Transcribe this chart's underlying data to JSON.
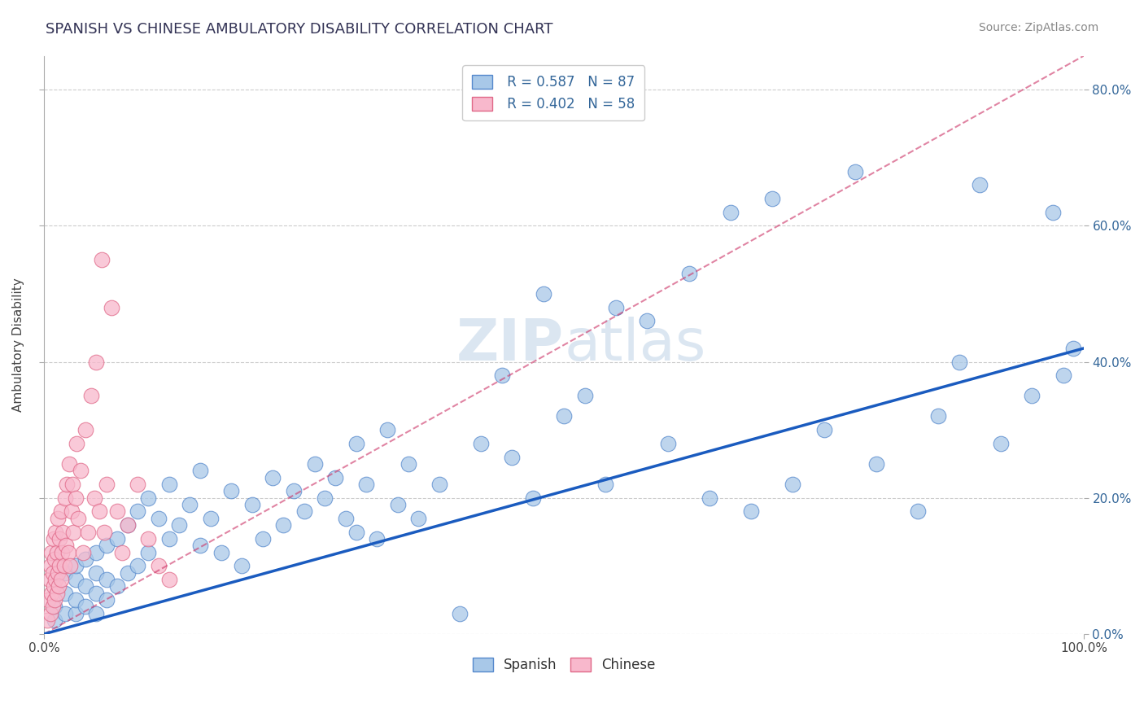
{
  "title": "SPANISH VS CHINESE AMBULATORY DISABILITY CORRELATION CHART",
  "source": "Source: ZipAtlas.com",
  "ylabel": "Ambulatory Disability",
  "xlim": [
    0.0,
    1.0
  ],
  "ylim": [
    0.0,
    0.85
  ],
  "ytick_values": [
    0.0,
    0.2,
    0.4,
    0.6,
    0.8
  ],
  "spanish_R": 0.587,
  "spanish_N": 87,
  "chinese_R": 0.402,
  "chinese_N": 58,
  "spanish_color": "#a8c8e8",
  "spanish_edge": "#5588cc",
  "chinese_color": "#f8b8cc",
  "chinese_edge": "#e06888",
  "trend_spanish_color": "#1a5bbf",
  "trend_chinese_color": "#cc3366",
  "background_color": "#ffffff",
  "grid_color": "#cccccc",
  "watermark_color": "#d8e4f0",
  "spanish_x": [
    0.01,
    0.01,
    0.02,
    0.02,
    0.02,
    0.03,
    0.03,
    0.03,
    0.03,
    0.04,
    0.04,
    0.04,
    0.05,
    0.05,
    0.05,
    0.05,
    0.06,
    0.06,
    0.06,
    0.07,
    0.07,
    0.08,
    0.08,
    0.09,
    0.09,
    0.1,
    0.1,
    0.11,
    0.12,
    0.12,
    0.13,
    0.14,
    0.15,
    0.15,
    0.16,
    0.17,
    0.18,
    0.19,
    0.2,
    0.21,
    0.22,
    0.23,
    0.24,
    0.25,
    0.26,
    0.27,
    0.28,
    0.29,
    0.3,
    0.3,
    0.31,
    0.32,
    0.33,
    0.34,
    0.35,
    0.36,
    0.38,
    0.4,
    0.42,
    0.44,
    0.45,
    0.47,
    0.48,
    0.5,
    0.52,
    0.54,
    0.55,
    0.58,
    0.6,
    0.62,
    0.64,
    0.66,
    0.68,
    0.7,
    0.72,
    0.75,
    0.78,
    0.8,
    0.84,
    0.86,
    0.88,
    0.9,
    0.92,
    0.95,
    0.97,
    0.98,
    0.99
  ],
  "spanish_y": [
    0.02,
    0.04,
    0.03,
    0.06,
    0.09,
    0.03,
    0.05,
    0.08,
    0.1,
    0.04,
    0.07,
    0.11,
    0.03,
    0.06,
    0.09,
    0.12,
    0.05,
    0.08,
    0.13,
    0.07,
    0.14,
    0.09,
    0.16,
    0.1,
    0.18,
    0.12,
    0.2,
    0.17,
    0.14,
    0.22,
    0.16,
    0.19,
    0.13,
    0.24,
    0.17,
    0.12,
    0.21,
    0.1,
    0.19,
    0.14,
    0.23,
    0.16,
    0.21,
    0.18,
    0.25,
    0.2,
    0.23,
    0.17,
    0.15,
    0.28,
    0.22,
    0.14,
    0.3,
    0.19,
    0.25,
    0.17,
    0.22,
    0.03,
    0.28,
    0.38,
    0.26,
    0.2,
    0.5,
    0.32,
    0.35,
    0.22,
    0.48,
    0.46,
    0.28,
    0.53,
    0.2,
    0.62,
    0.18,
    0.64,
    0.22,
    0.3,
    0.68,
    0.25,
    0.18,
    0.32,
    0.4,
    0.66,
    0.28,
    0.35,
    0.62,
    0.38,
    0.42
  ],
  "chinese_x": [
    0.003,
    0.004,
    0.005,
    0.006,
    0.006,
    0.007,
    0.007,
    0.008,
    0.008,
    0.009,
    0.009,
    0.01,
    0.01,
    0.011,
    0.011,
    0.012,
    0.012,
    0.013,
    0.013,
    0.014,
    0.015,
    0.015,
    0.016,
    0.016,
    0.017,
    0.018,
    0.019,
    0.02,
    0.021,
    0.022,
    0.023,
    0.024,
    0.025,
    0.026,
    0.027,
    0.028,
    0.03,
    0.031,
    0.033,
    0.035,
    0.037,
    0.04,
    0.042,
    0.045,
    0.048,
    0.05,
    0.053,
    0.055,
    0.058,
    0.06,
    0.065,
    0.07,
    0.075,
    0.08,
    0.09,
    0.1,
    0.11,
    0.12
  ],
  "chinese_y": [
    0.02,
    0.05,
    0.08,
    0.03,
    0.1,
    0.06,
    0.12,
    0.04,
    0.09,
    0.07,
    0.14,
    0.05,
    0.11,
    0.08,
    0.15,
    0.06,
    0.12,
    0.09,
    0.17,
    0.07,
    0.1,
    0.14,
    0.08,
    0.18,
    0.12,
    0.15,
    0.1,
    0.2,
    0.13,
    0.22,
    0.12,
    0.25,
    0.1,
    0.18,
    0.22,
    0.15,
    0.2,
    0.28,
    0.17,
    0.24,
    0.12,
    0.3,
    0.15,
    0.35,
    0.2,
    0.4,
    0.18,
    0.55,
    0.15,
    0.22,
    0.48,
    0.18,
    0.12,
    0.16,
    0.22,
    0.14,
    0.1,
    0.08
  ],
  "spanish_trend_x0": 0.0,
  "spanish_trend_y0": 0.0,
  "spanish_trend_x1": 1.0,
  "spanish_trend_y1": 0.42,
  "chinese_trend_x0": 0.0,
  "chinese_trend_y0": 0.0,
  "chinese_trend_x1": 1.0,
  "chinese_trend_y1": 0.85
}
